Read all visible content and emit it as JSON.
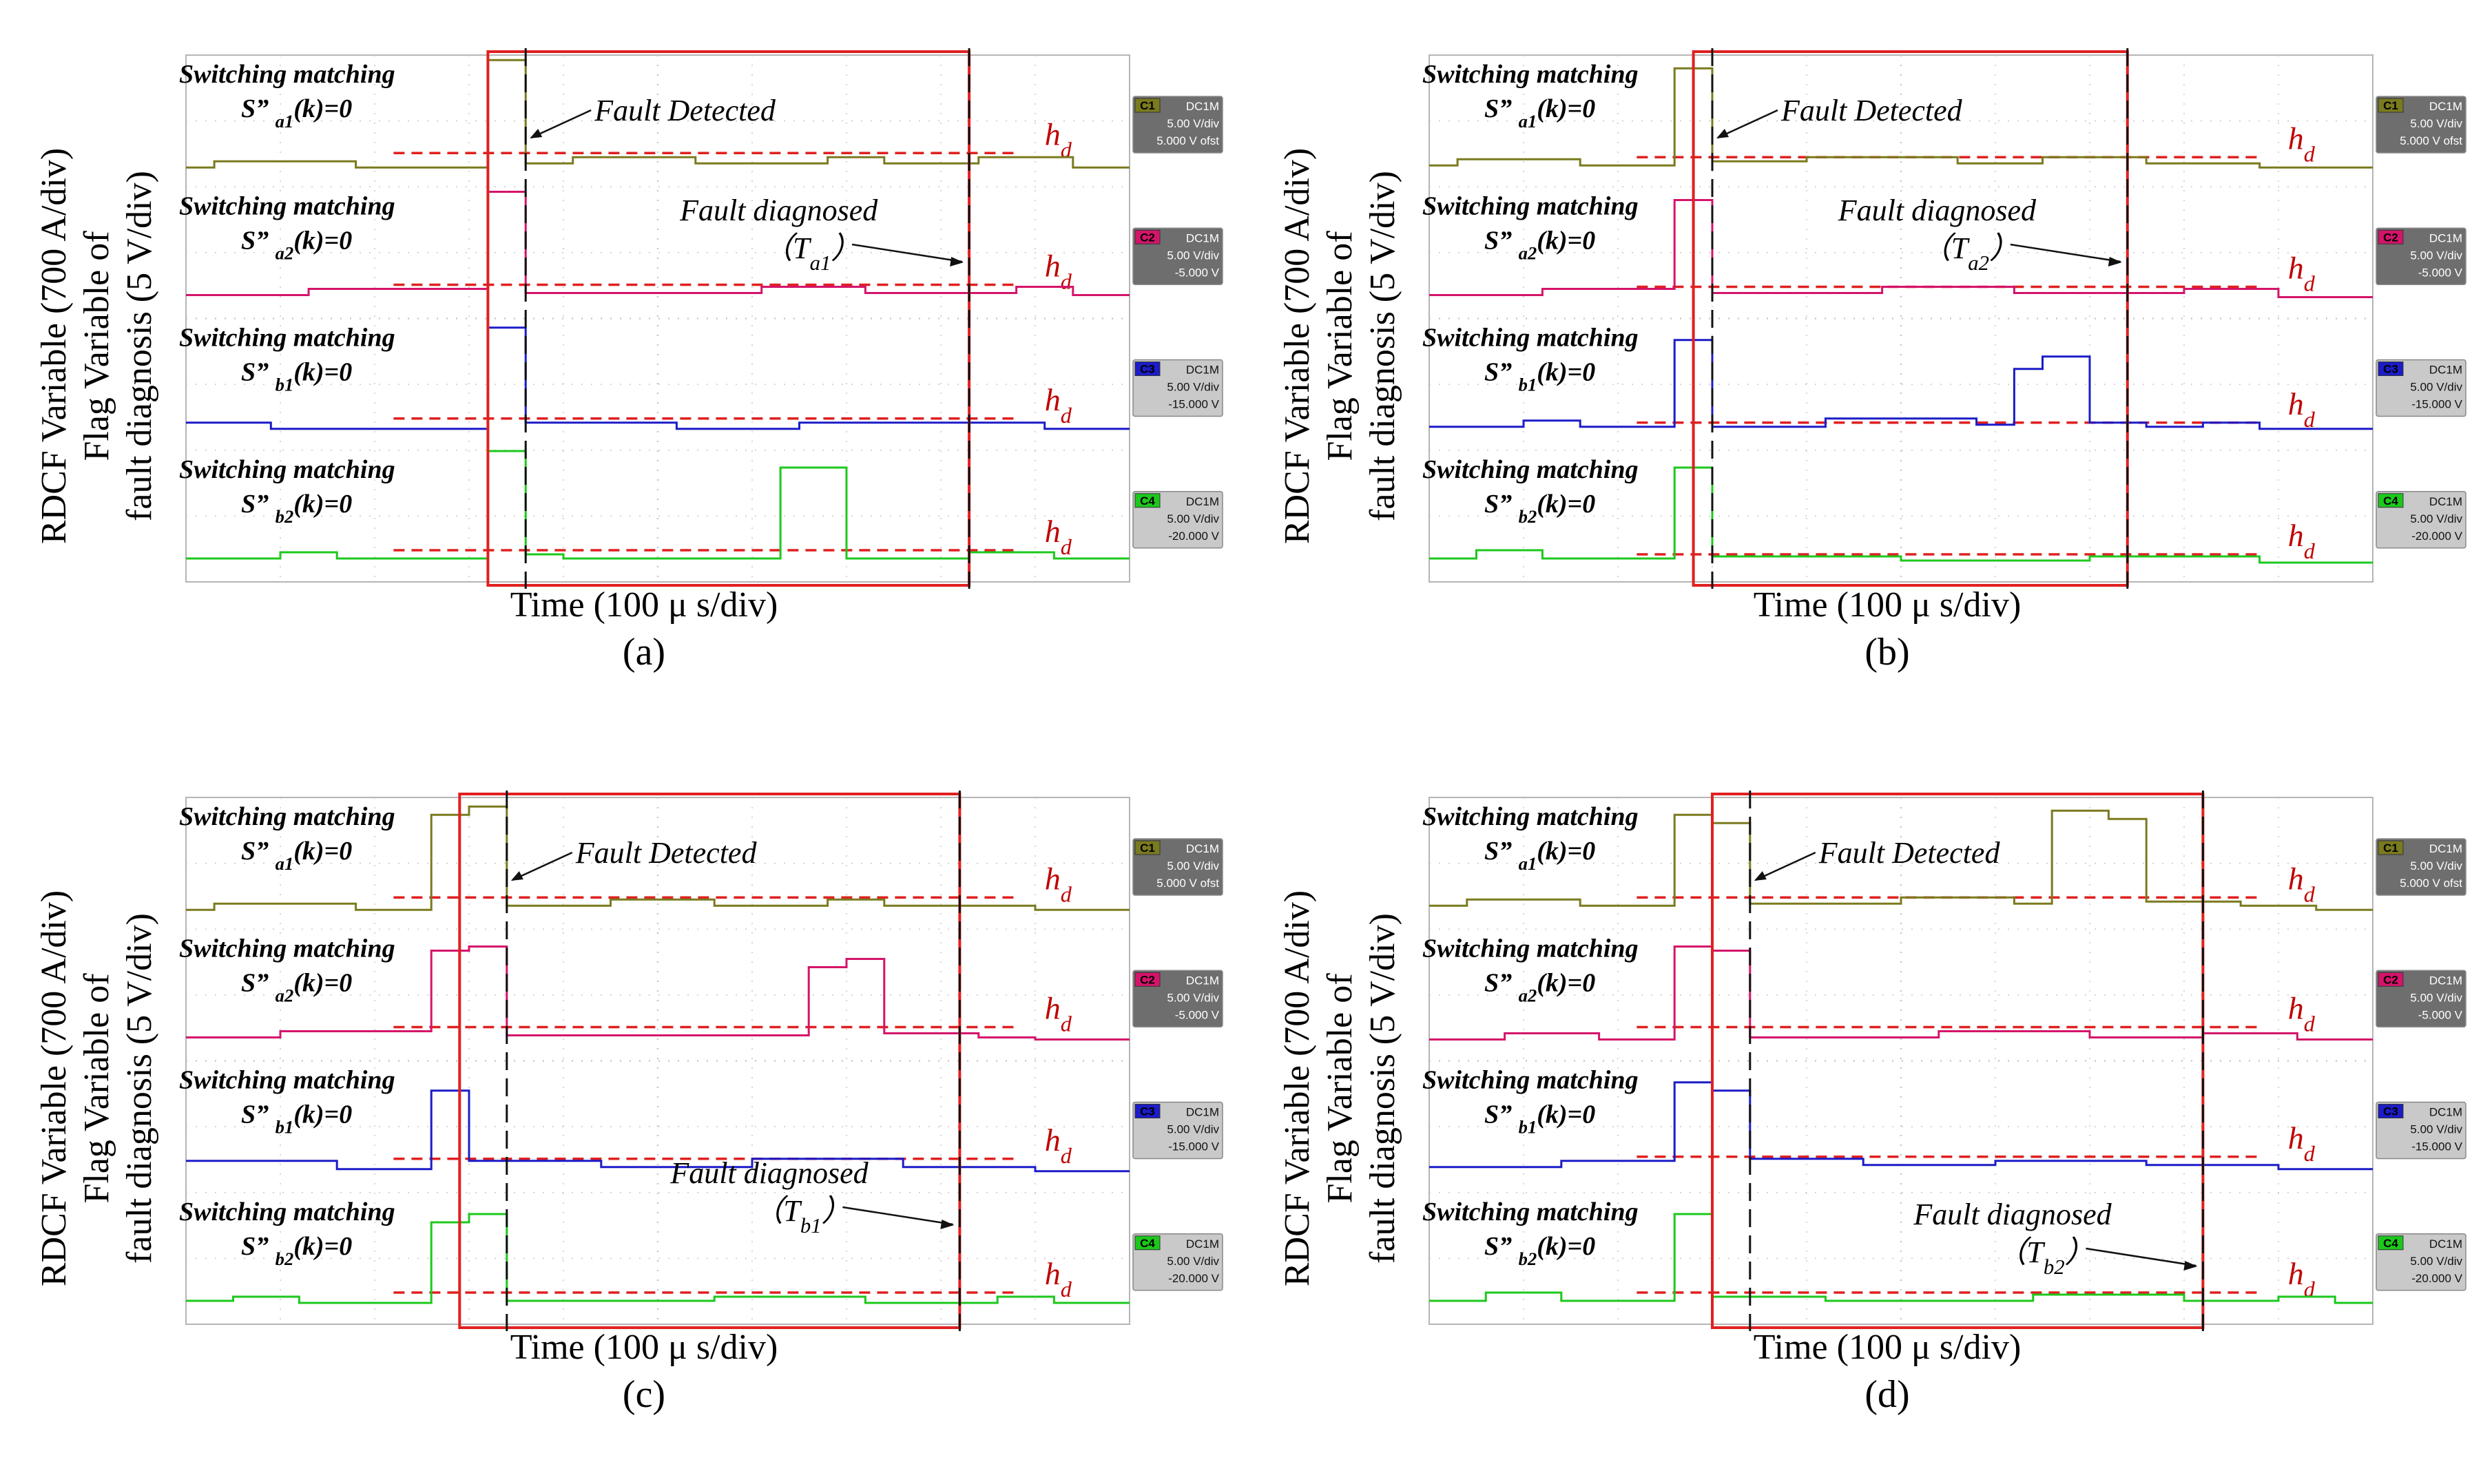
{
  "chart_data": [
    {
      "type": "line",
      "panel": "(a)",
      "caption": "(a)",
      "ylabel_line1": "RDCF Variable (700 A/div)",
      "ylabel_line2": "Flag Variable of",
      "ylabel_line3": "fault diagnosis (5 V/div)",
      "xlabel": "Time (100 μ s/div)",
      "x_range": [
        0,
        10
      ],
      "fault_start": 3.3,
      "detect_time": 3.6,
      "diag_time": 8.3,
      "red_box": [
        3.2,
        8.3
      ],
      "detect_label": "Fault Detected",
      "diag_label": "Fault diagnosed",
      "diag_sub": "（T",
      "diag_sub_idx": "a1",
      "diag_sub_close": "）",
      "hd_label": "h",
      "hd_sub": "d",
      "series": [
        {
          "name": "Switching matching",
          "sub_pre": "S” ",
          "sub_idx": "a1",
          "sub_post": "(k)=0",
          "color": "#7a7a1f",
          "tag": "C1",
          "coupling": "DC1M",
          "scale": "5.00 V/div",
          "offset": "5.000 V ofst",
          "steps": [
            [
              0,
              0
            ],
            [
              0.3,
              0.15
            ],
            [
              1.8,
              0
            ],
            [
              3.2,
              2.6
            ],
            [
              3.6,
              0.1
            ],
            [
              4.1,
              0.25
            ],
            [
              5.4,
              0.1
            ],
            [
              6.8,
              0.25
            ],
            [
              7.4,
              0.1
            ],
            [
              8.4,
              0.25
            ],
            [
              9.4,
              0
            ]
          ],
          "hd": 0.35
        },
        {
          "name": "Switching matching",
          "sub_pre": "S” ",
          "sub_idx": "a2",
          "sub_post": "(k)=0",
          "color": "#d4146a",
          "tag": "C2",
          "coupling": "DC1M",
          "scale": "5.00 V/div",
          "offset": "-5.000 V",
          "steps": [
            [
              0,
              0.1
            ],
            [
              1.3,
              0.25
            ],
            [
              3.2,
              2.6
            ],
            [
              3.6,
              0.15
            ],
            [
              6.1,
              0.3
            ],
            [
              7.2,
              0.15
            ],
            [
              8.8,
              0.3
            ],
            [
              9.4,
              0.1
            ]
          ],
          "hd": 0.35
        },
        {
          "name": "Switching matching",
          "sub_pre": "S” ",
          "sub_idx": "b1",
          "sub_post": "(k)=0",
          "color": "#1c1cc8",
          "tag": "C3",
          "coupling": "DC1M",
          "scale": "5.00 V/div",
          "offset": "-15.000 V",
          "steps": [
            [
              0,
              0.2
            ],
            [
              0.9,
              0.05
            ],
            [
              3.2,
              2.5
            ],
            [
              3.6,
              0.2
            ],
            [
              5.2,
              0.05
            ],
            [
              6.5,
              0.2
            ],
            [
              9.1,
              0.05
            ]
          ],
          "hd": 0.3
        },
        {
          "name": "Switching matching",
          "sub_pre": "S” ",
          "sub_idx": "b2",
          "sub_post": "(k)=0",
          "color": "#1cc81c",
          "tag": "C4",
          "coupling": "DC1M",
          "scale": "5.00 V/div",
          "offset": "-20.000 V",
          "steps": [
            [
              0,
              0.1
            ],
            [
              1.0,
              0.25
            ],
            [
              1.6,
              0.1
            ],
            [
              3.2,
              2.7
            ],
            [
              3.6,
              0.2
            ],
            [
              4.0,
              0.1
            ],
            [
              6.3,
              2.3
            ],
            [
              7.0,
              0.1
            ],
            [
              8.3,
              0.25
            ],
            [
              9.2,
              0.1
            ]
          ],
          "hd": 0.3
        }
      ]
    },
    {
      "type": "line",
      "panel": "(b)",
      "caption": "(b)",
      "ylabel_line1": "RDCF Variable (700 A/div)",
      "ylabel_line2": "Flag Variable of",
      "ylabel_line3": "fault diagnosis (5 V/div)",
      "xlabel": "Time (100 μ s/div)",
      "x_range": [
        0,
        10
      ],
      "fault_start": 2.6,
      "detect_time": 3.0,
      "diag_time": 7.4,
      "red_box": [
        2.8,
        7.4
      ],
      "detect_label": "Fault Detected",
      "diag_label": "Fault diagnosed",
      "diag_sub": "（T",
      "diag_sub_idx": "a2",
      "diag_sub_close": "）",
      "hd_label": "h",
      "hd_sub": "d",
      "series": [
        {
          "name": "Switching matching",
          "sub_pre": "S” ",
          "sub_idx": "a1",
          "sub_post": "(k)=0",
          "color": "#7a7a1f",
          "tag": "C1",
          "coupling": "DC1M",
          "scale": "5.00 V/div",
          "offset": "5.000 V ofst",
          "steps": [
            [
              0,
              0.05
            ],
            [
              0.3,
              0.2
            ],
            [
              1.6,
              0.05
            ],
            [
              2.6,
              2.4
            ],
            [
              3.0,
              0.15
            ],
            [
              4.0,
              0.25
            ],
            [
              5.6,
              0.1
            ],
            [
              6.5,
              0.25
            ],
            [
              7.6,
              0.1
            ],
            [
              8.8,
              0
            ]
          ],
          "hd": 0.25
        },
        {
          "name": "Switching matching",
          "sub_pre": "S” ",
          "sub_idx": "a2",
          "sub_post": "(k)=0",
          "color": "#d4146a",
          "tag": "C2",
          "coupling": "DC1M",
          "scale": "5.00 V/div",
          "offset": "-5.000 V",
          "steps": [
            [
              0,
              0.1
            ],
            [
              1.2,
              0.25
            ],
            [
              2.6,
              2.4
            ],
            [
              3.0,
              0.15
            ],
            [
              4.8,
              0.3
            ],
            [
              6.2,
              0.15
            ],
            [
              8.0,
              0.25
            ],
            [
              9.0,
              0.05
            ]
          ],
          "hd": 0.3
        },
        {
          "name": "Switching matching",
          "sub_pre": "S” ",
          "sub_idx": "b1",
          "sub_post": "(k)=0",
          "color": "#1c1cc8",
          "tag": "C3",
          "coupling": "DC1M",
          "scale": "5.00 V/div",
          "offset": "-15.000 V",
          "steps": [
            [
              0,
              0.1
            ],
            [
              1.0,
              0.25
            ],
            [
              1.6,
              0.1
            ],
            [
              2.6,
              2.2
            ],
            [
              3.0,
              0.1
            ],
            [
              4.2,
              0.3
            ],
            [
              5.8,
              0.15
            ],
            [
              6.2,
              1.5
            ],
            [
              6.5,
              1.8
            ],
            [
              7.0,
              0.2
            ],
            [
              7.6,
              0.1
            ],
            [
              8.2,
              0.2
            ],
            [
              8.8,
              0.05
            ]
          ],
          "hd": 0.2
        },
        {
          "name": "Switching matching",
          "sub_pre": "S” ",
          "sub_idx": "b2",
          "sub_post": "(k)=0",
          "color": "#1cc81c",
          "tag": "C4",
          "coupling": "DC1M",
          "scale": "5.00 V/div",
          "offset": "-20.000 V",
          "steps": [
            [
              0,
              0.1
            ],
            [
              0.5,
              0.3
            ],
            [
              1.2,
              0.1
            ],
            [
              2.6,
              2.3
            ],
            [
              3.0,
              0.15
            ],
            [
              5.0,
              0.05
            ],
            [
              7.0,
              0.15
            ],
            [
              8.8,
              0
            ]
          ],
          "hd": 0.2
        }
      ]
    },
    {
      "type": "line",
      "panel": "(c)",
      "caption": "(c)",
      "ylabel_line1": "RDCF Variable (700 A/div)",
      "ylabel_line2": "Flag Variable of",
      "ylabel_line3": "fault diagnosis (5 V/div)",
      "xlabel": "Time (100 μ s/div)",
      "x_range": [
        0,
        10
      ],
      "fault_start": 2.6,
      "detect_time": 3.4,
      "diag_time": 8.2,
      "red_box": [
        2.9,
        8.2
      ],
      "detect_label": "Fault Detected",
      "diag_label": "Fault diagnosed",
      "diag_sub": "（T",
      "diag_sub_idx": "b1",
      "diag_sub_close": "）",
      "hd_label": "h",
      "hd_sub": "d",
      "series": [
        {
          "name": "Switching matching",
          "sub_pre": "S” ",
          "sub_idx": "a1",
          "sub_post": "(k)=0",
          "color": "#7a7a1f",
          "tag": "C1",
          "coupling": "DC1M",
          "scale": "5.00 V/div",
          "offset": "5.000 V ofst",
          "steps": [
            [
              0,
              0
            ],
            [
              0.3,
              0.15
            ],
            [
              1.8,
              0
            ],
            [
              2.6,
              2.3
            ],
            [
              3.0,
              2.5
            ],
            [
              3.4,
              0.1
            ],
            [
              4.5,
              0.25
            ],
            [
              5.6,
              0.1
            ],
            [
              6.8,
              0.25
            ],
            [
              7.4,
              0.1
            ],
            [
              9.0,
              0
            ]
          ],
          "hd": 0.3
        },
        {
          "name": "Switching matching",
          "sub_pre": "S” ",
          "sub_idx": "a2",
          "sub_post": "(k)=0",
          "color": "#d4146a",
          "tag": "C2",
          "coupling": "DC1M",
          "scale": "5.00 V/div",
          "offset": "-5.000 V",
          "steps": [
            [
              0,
              0.1
            ],
            [
              1.0,
              0.25
            ],
            [
              2.6,
              2.2
            ],
            [
              3.0,
              2.3
            ],
            [
              3.4,
              0.15
            ],
            [
              6.6,
              1.8
            ],
            [
              7.0,
              2.0
            ],
            [
              7.4,
              0.2
            ],
            [
              8.4,
              0.1
            ],
            [
              9.0,
              0.05
            ]
          ],
          "hd": 0.35
        },
        {
          "name": "Switching matching",
          "sub_pre": "S” ",
          "sub_idx": "b1",
          "sub_post": "(k)=0",
          "color": "#1c1cc8",
          "tag": "C3",
          "coupling": "DC1M",
          "scale": "5.00 V/div",
          "offset": "-15.000 V",
          "steps": [
            [
              0,
              0.3
            ],
            [
              1.6,
              0.1
            ],
            [
              2.6,
              2.0
            ],
            [
              3.0,
              0.3
            ],
            [
              4.4,
              0.15
            ],
            [
              6.0,
              0.35
            ],
            [
              7.6,
              0.15
            ],
            [
              9.0,
              0.05
            ]
          ],
          "hd": 0.35
        },
        {
          "name": "Switching matching",
          "sub_pre": "S” ",
          "sub_idx": "b2",
          "sub_post": "(k)=0",
          "color": "#1cc81c",
          "tag": "C4",
          "coupling": "DC1M",
          "scale": "5.00 V/div",
          "offset": "-20.000 V",
          "steps": [
            [
              0,
              0.1
            ],
            [
              0.5,
              0.2
            ],
            [
              1.2,
              0.05
            ],
            [
              2.6,
              2.0
            ],
            [
              3.0,
              2.2
            ],
            [
              3.4,
              0.1
            ],
            [
              5.6,
              0.2
            ],
            [
              7.2,
              0.05
            ],
            [
              8.6,
              0.2
            ],
            [
              9.2,
              0.05
            ]
          ],
          "hd": 0.3
        }
      ]
    },
    {
      "type": "line",
      "panel": "(d)",
      "caption": "(d)",
      "ylabel_line1": "RDCF Variable (700 A/div)",
      "ylabel_line2": "Flag Variable of",
      "ylabel_line3": "fault diagnosis (5 V/div)",
      "xlabel": "Time (100 μ s/div)",
      "x_range": [
        0,
        10
      ],
      "fault_start": 2.6,
      "detect_time": 3.4,
      "diag_time": 8.2,
      "red_box": [
        3.0,
        8.2
      ],
      "detect_label": "Fault Detected",
      "diag_label": "Fault diagnosed",
      "diag_sub": "（T",
      "diag_sub_idx": "b2",
      "diag_sub_close": "）",
      "hd_label": "h",
      "hd_sub": "d",
      "series": [
        {
          "name": "Switching matching",
          "sub_pre": "S” ",
          "sub_idx": "a1",
          "sub_post": "(k)=0",
          "color": "#7a7a1f",
          "tag": "C1",
          "coupling": "DC1M",
          "scale": "5.00 V/div",
          "offset": "5.000 V ofst",
          "steps": [
            [
              0,
              0.1
            ],
            [
              0.4,
              0.25
            ],
            [
              1.6,
              0.1
            ],
            [
              2.6,
              2.3
            ],
            [
              3.0,
              2.1
            ],
            [
              3.4,
              0.15
            ],
            [
              5.0,
              0.3
            ],
            [
              6.2,
              0.15
            ],
            [
              6.6,
              2.4
            ],
            [
              7.2,
              2.2
            ],
            [
              7.6,
              0.2
            ],
            [
              8.6,
              0.1
            ],
            [
              9.4,
              0
            ]
          ],
          "hd": 0.3
        },
        {
          "name": "Switching matching",
          "sub_pre": "S” ",
          "sub_idx": "a2",
          "sub_post": "(k)=0",
          "color": "#d4146a",
          "tag": "C2",
          "coupling": "DC1M",
          "scale": "5.00 V/div",
          "offset": "-5.000 V",
          "steps": [
            [
              0,
              0.05
            ],
            [
              0.8,
              0.2
            ],
            [
              1.8,
              0.05
            ],
            [
              2.6,
              2.3
            ],
            [
              3.0,
              2.2
            ],
            [
              3.4,
              0.1
            ],
            [
              5.4,
              0.25
            ],
            [
              7.0,
              0.1
            ],
            [
              8.2,
              0.2
            ],
            [
              9.2,
              0.05
            ]
          ],
          "hd": 0.35
        },
        {
          "name": "Switching matching",
          "sub_pre": "S” ",
          "sub_idx": "b1",
          "sub_post": "(k)=0",
          "color": "#1c1cc8",
          "tag": "C3",
          "coupling": "DC1M",
          "scale": "5.00 V/div",
          "offset": "-15.000 V",
          "steps": [
            [
              0,
              0.15
            ],
            [
              1.4,
              0.3
            ],
            [
              2.6,
              2.2
            ],
            [
              3.0,
              2.0
            ],
            [
              3.4,
              0.35
            ],
            [
              4.6,
              0.2
            ],
            [
              6.0,
              0.3
            ],
            [
              7.6,
              0.2
            ],
            [
              9.0,
              0.1
            ]
          ],
          "hd": 0.4
        },
        {
          "name": "Switching matching",
          "sub_pre": "S” ",
          "sub_idx": "b2",
          "sub_post": "(k)=0",
          "color": "#1cc81c",
          "tag": "C4",
          "coupling": "DC1M",
          "scale": "5.00 V/div",
          "offset": "-20.000 V",
          "steps": [
            [
              0,
              0.1
            ],
            [
              0.6,
              0.3
            ],
            [
              1.4,
              0.1
            ],
            [
              2.6,
              2.2
            ],
            [
              3.0,
              0.2
            ],
            [
              4.2,
              0.1
            ],
            [
              6.4,
              0.25
            ],
            [
              8.0,
              0.1
            ],
            [
              9.0,
              0.2
            ],
            [
              9.6,
              0.05
            ]
          ],
          "hd": 0.3
        }
      ]
    }
  ]
}
